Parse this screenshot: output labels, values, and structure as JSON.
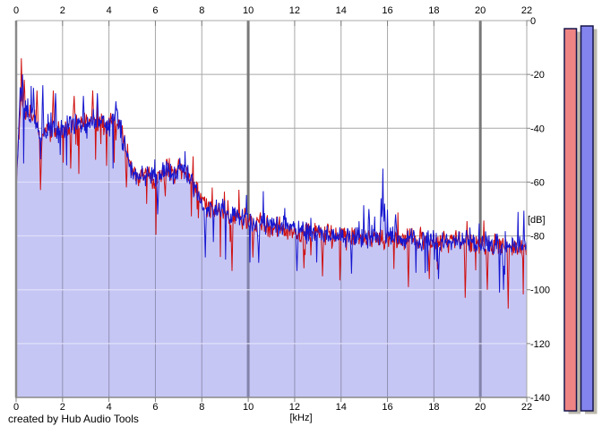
{
  "credit": "created by Hub Audio Tools",
  "chart_data": {
    "type": "line",
    "title": "",
    "xlabel": "[kHz]",
    "ylabel": "[dB]",
    "x_range": [
      0,
      22
    ],
    "y_range": [
      -140,
      0
    ],
    "x_ticks": [
      0,
      2,
      4,
      6,
      8,
      10,
      12,
      14,
      16,
      18,
      20,
      22
    ],
    "y_ticks": [
      0,
      -20,
      -40,
      -60,
      -80,
      -100,
      -120,
      -140
    ],
    "grid": true,
    "dark_x_gridlines": [
      10,
      20
    ],
    "gridline_color": "#a8a8a8",
    "dark_gridline_color": "#787878",
    "border_color": "#8a8a8a",
    "fill_color": "#c6c6f5",
    "fill_series": 1,
    "clipped_h_gridline_color": "#dfdff9",
    "clipped_v_gridline_color": "#9090b4",
    "clipped_dark_v_gridline_color": "#8383aa",
    "envelope_db": [
      [
        0,
        -62
      ],
      [
        0.1,
        -45
      ],
      [
        0.2,
        -30
      ],
      [
        0.3,
        -31
      ],
      [
        0.5,
        -35
      ],
      [
        0.7,
        -35
      ],
      [
        0.9,
        -37
      ],
      [
        1.05,
        -48
      ],
      [
        1.2,
        -40
      ],
      [
        1.5,
        -41
      ],
      [
        1.8,
        -41
      ],
      [
        2.1,
        -40
      ],
      [
        2.4,
        -39
      ],
      [
        2.7,
        -39
      ],
      [
        3.0,
        -38
      ],
      [
        3.3,
        -37
      ],
      [
        3.6,
        -38
      ],
      [
        3.9,
        -39
      ],
      [
        4.1,
        -38
      ],
      [
        4.35,
        -37
      ],
      [
        4.6,
        -44
      ],
      [
        4.8,
        -50
      ],
      [
        5.0,
        -57
      ],
      [
        5.3,
        -58
      ],
      [
        5.6,
        -56
      ],
      [
        5.9,
        -59
      ],
      [
        6.2,
        -57
      ],
      [
        6.5,
        -55
      ],
      [
        6.8,
        -57
      ],
      [
        7.1,
        -55
      ],
      [
        7.4,
        -58
      ],
      [
        7.7,
        -62
      ],
      [
        8.0,
        -67
      ],
      [
        8.5,
        -70
      ],
      [
        9.0,
        -71
      ],
      [
        9.5,
        -73
      ],
      [
        10.0,
        -74
      ],
      [
        10.5,
        -75
      ],
      [
        11.0,
        -76
      ],
      [
        11.5,
        -77
      ],
      [
        12.0,
        -78
      ],
      [
        13.0,
        -79
      ],
      [
        14.0,
        -80
      ],
      [
        15.0,
        -80
      ],
      [
        16.0,
        -81
      ],
      [
        17.0,
        -81
      ],
      [
        18.0,
        -82
      ],
      [
        19.0,
        -82
      ],
      [
        20.0,
        -83
      ],
      [
        21.0,
        -83
      ],
      [
        22.0,
        -85
      ]
    ],
    "noise": {
      "step_khz": 0.025,
      "spread": 5,
      "down_extra": 13,
      "up_extra": 9
    },
    "series": [
      {
        "name": "left-channel",
        "color": "#cf0f0f",
        "seed": 1337,
        "down_spike_prob": 0.035,
        "up_spike_prob": 0.01,
        "spikes": [
          [
            0.22,
            -14
          ],
          [
            0.35,
            -22
          ],
          [
            0.9,
            -26
          ],
          [
            1.05,
            -63
          ],
          [
            1.6,
            -26
          ],
          [
            2.35,
            -55
          ],
          [
            2.5,
            -28
          ],
          [
            3.3,
            -26
          ],
          [
            4.75,
            -62
          ],
          [
            9.3,
            -93
          ],
          [
            10.2,
            -88
          ],
          [
            12.4,
            -92
          ],
          [
            13.2,
            -95
          ],
          [
            16.9,
            -99
          ],
          [
            17.8,
            -96
          ],
          [
            19.35,
            -103
          ],
          [
            20.3,
            -100
          ],
          [
            21.2,
            -107
          ]
        ]
      },
      {
        "name": "right-channel",
        "color": "#1717cf",
        "seed": 7331,
        "down_spike_prob": 0.02,
        "up_spike_prob": 0.022,
        "spikes": [
          [
            0.18,
            -25
          ],
          [
            0.28,
            -20
          ],
          [
            0.75,
            -25
          ],
          [
            1.15,
            -24
          ],
          [
            1.7,
            -27
          ],
          [
            2.9,
            -28
          ],
          [
            3.5,
            -27
          ],
          [
            4.3,
            -30
          ],
          [
            6.1,
            -72
          ],
          [
            8.15,
            -88
          ],
          [
            10.45,
            -90
          ],
          [
            12.1,
            -93
          ],
          [
            14.45,
            -94
          ],
          [
            15.2,
            -70
          ],
          [
            15.72,
            -66
          ],
          [
            15.8,
            -55
          ],
          [
            15.88,
            -68
          ],
          [
            16.35,
            -72
          ],
          [
            18.2,
            -96
          ],
          [
            21.0,
            -100
          ]
        ]
      }
    ]
  },
  "meters": [
    {
      "name": "left-level-meter",
      "fill": "#ef8484",
      "outline": "#16164c",
      "shadow": "#bcb8ac",
      "level_db": -3
    },
    {
      "name": "right-level-meter",
      "fill": "#8484ef",
      "outline": "#16164c",
      "shadow": "#bcb8ac",
      "level_db": -2
    }
  ]
}
